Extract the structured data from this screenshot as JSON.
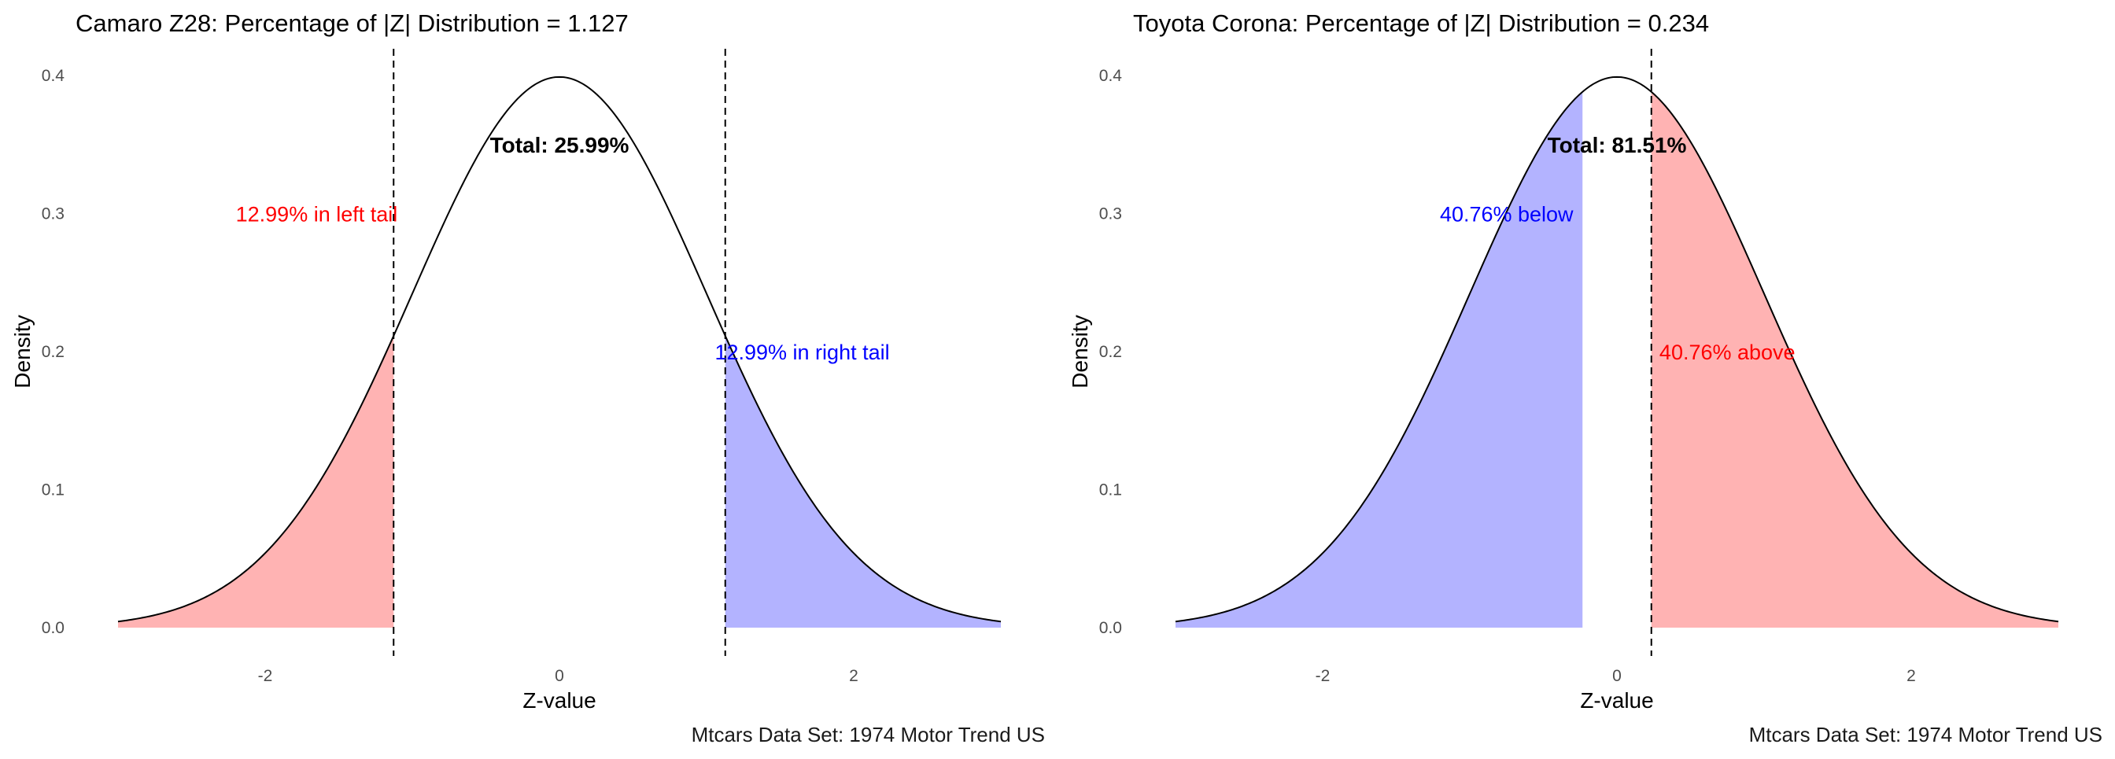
{
  "chart_data": [
    {
      "type": "area",
      "title": "Camaro Z28: Percentage of |Z| Distribution = 1.127",
      "xlabel": "Z-value",
      "ylabel": "Density",
      "caption": "Mtcars Data Set: 1974 Motor Trend US",
      "xlim": [
        -3,
        3
      ],
      "ylim": [
        0,
        0.4
      ],
      "x_ticks": [
        -2,
        0,
        2
      ],
      "x_tick_labels": [
        "-2",
        "0",
        "2"
      ],
      "y_ticks": [
        0.0,
        0.1,
        0.2,
        0.3,
        0.4
      ],
      "y_tick_labels": [
        "0.0",
        "0.1",
        "0.2",
        "0.3",
        "0.4"
      ],
      "grid": false,
      "curve": "standard normal density",
      "cutoffs": [
        -1.127,
        1.127
      ],
      "shaded_regions": [
        {
          "from": -3,
          "to": -1.127,
          "color": "#ffb3b3"
        },
        {
          "from": 1.127,
          "to": 3,
          "color": "#b3b3ff"
        }
      ],
      "annotations": [
        {
          "text": "12.99% in left tail",
          "x": -1.65,
          "y": 0.3,
          "color": "#ff0000",
          "bold": false
        },
        {
          "text": "12.99% in right tail",
          "x": 1.65,
          "y": 0.2,
          "color": "#0000ff",
          "bold": false
        },
        {
          "text": "Total: 25.99%",
          "x": 0,
          "y": 0.35,
          "color": "#000000",
          "bold": true
        }
      ]
    },
    {
      "type": "area",
      "title": "Toyota Corona: Percentage of |Z| Distribution = 0.234",
      "xlabel": "Z-value",
      "ylabel": "Density",
      "caption": "Mtcars Data Set: 1974 Motor Trend US",
      "xlim": [
        -3,
        3
      ],
      "ylim": [
        0,
        0.4
      ],
      "x_ticks": [
        -2,
        0,
        2
      ],
      "x_tick_labels": [
        "-2",
        "0",
        "2"
      ],
      "y_ticks": [
        0.0,
        0.1,
        0.2,
        0.3,
        0.4
      ],
      "y_tick_labels": [
        "0.0",
        "0.1",
        "0.2",
        "0.3",
        "0.4"
      ],
      "grid": false,
      "curve": "standard normal density",
      "cutoffs": [
        0.234
      ],
      "shaded_regions": [
        {
          "from": -3,
          "to": -0.234,
          "color": "#b3b3ff"
        },
        {
          "from": 0.234,
          "to": 3,
          "color": "#ffb3b3"
        }
      ],
      "annotations": [
        {
          "text": "40.76% below",
          "x": -0.75,
          "y": 0.3,
          "color": "#0000ff",
          "bold": false
        },
        {
          "text": "40.76% above",
          "x": 0.75,
          "y": 0.2,
          "color": "#ff0000",
          "bold": false
        },
        {
          "text": "Total: 81.51%",
          "x": 0,
          "y": 0.35,
          "color": "#000000",
          "bold": true
        }
      ]
    }
  ]
}
